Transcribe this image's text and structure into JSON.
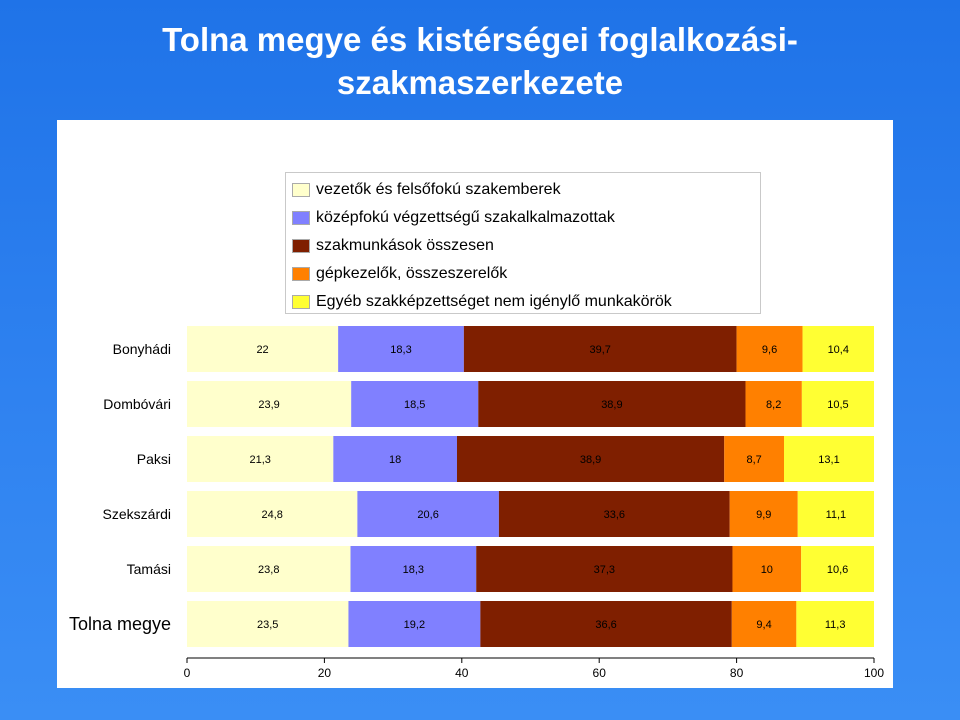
{
  "title": {
    "line1": "Tolna megye és kistérségei foglalkozási-",
    "line2": "szakmaszerkezete"
  },
  "chart_data": {
    "type": "bar",
    "orientation": "horizontal",
    "stacked": true,
    "xlim": [
      0,
      100
    ],
    "xticks": [
      0,
      20,
      40,
      60,
      80,
      100
    ],
    "legend_position": "top",
    "categories": [
      "Bonyhádi",
      "Dombóvári",
      "Paksi",
      "Szekszárdi",
      "Tamási",
      "Tolna megye"
    ],
    "series": [
      {
        "name": "vezetők és felsőfokú szakemberek",
        "color": "#FFFFCC",
        "values": [
          22,
          23.9,
          21.3,
          24.8,
          23.8,
          23.5
        ],
        "labels": [
          "22",
          "23,9",
          "21,3",
          "24,8",
          "23,8",
          "23,5"
        ]
      },
      {
        "name": "középfokú végzettségű szakalkalmazottak",
        "color": "#8080FF",
        "values": [
          18.3,
          18.5,
          18,
          20.6,
          18.3,
          19.2
        ],
        "labels": [
          "18,3",
          "18,5",
          "18",
          "20,6",
          "18,3",
          "19,2"
        ]
      },
      {
        "name": "szakmunkások összesen",
        "color": "#7F1F00",
        "values": [
          39.7,
          38.9,
          38.9,
          33.6,
          37.3,
          36.6
        ],
        "labels": [
          "39,7",
          "38,9",
          "38,9",
          "33,6",
          "37,3",
          "36,6"
        ]
      },
      {
        "name": "gépkezelők, összeszerelők",
        "color": "#FF8000",
        "values": [
          9.6,
          8.2,
          8.7,
          9.9,
          10,
          9.4
        ],
        "labels": [
          "9,6",
          "8,2",
          "8,7",
          "9,9",
          "10",
          "9,4"
        ]
      },
      {
        "name": "Egyéb szakképzettséget nem igénylő munkakörök",
        "color": "#FFFF33",
        "values": [
          10.4,
          10.5,
          13.1,
          11.1,
          10.6,
          11.3
        ],
        "labels": [
          "10,4",
          "10,5",
          "13,1",
          "11,1",
          "10,6",
          "11,3"
        ]
      }
    ]
  }
}
